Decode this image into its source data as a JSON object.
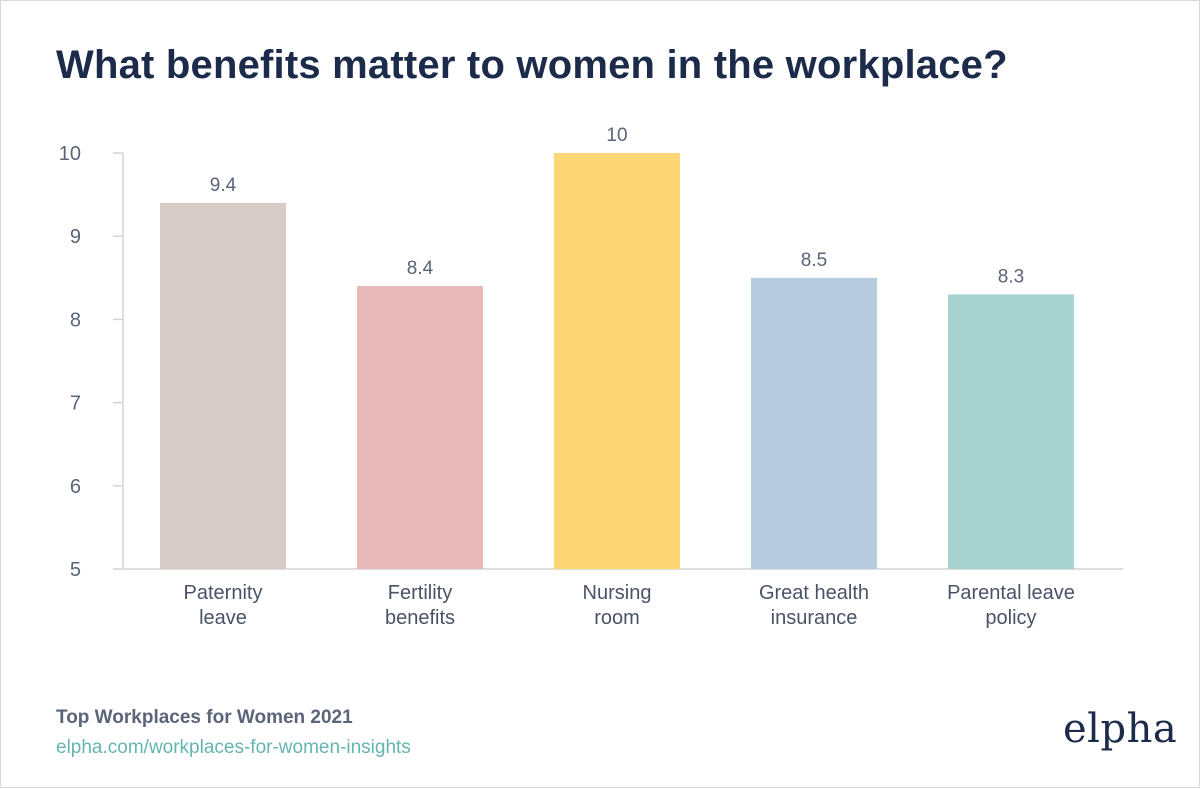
{
  "header": {
    "title": "What benefits matter to women in the workplace?"
  },
  "chart_data": {
    "type": "bar",
    "title": "What benefits matter to women in the workplace?",
    "categories": [
      [
        "Paternity",
        "leave"
      ],
      [
        "Fertility",
        "benefits"
      ],
      [
        "Nursing",
        "room"
      ],
      [
        "Great health",
        "insurance"
      ],
      [
        "Parental leave",
        "policy"
      ]
    ],
    "values": [
      9.4,
      8.4,
      10,
      8.5,
      8.3
    ],
    "value_labels": [
      "9.4",
      "8.4",
      "10",
      "8.5",
      "8.3"
    ],
    "colors": [
      "#d8ccc9",
      "#e8b9b8",
      "#fdd776",
      "#b8cce0",
      "#a6d3d0"
    ],
    "yticks": [
      5,
      6,
      7,
      8,
      9,
      10
    ],
    "ylim": [
      5,
      10
    ],
    "xlabel": "",
    "ylabel": "",
    "grid": false,
    "legend": "none"
  },
  "footer": {
    "source_title": "Top Workplaces for Women 2021",
    "source_link": "elpha.com/workplaces-for-women-insights"
  },
  "brand": {
    "logo_text": "elpha"
  }
}
